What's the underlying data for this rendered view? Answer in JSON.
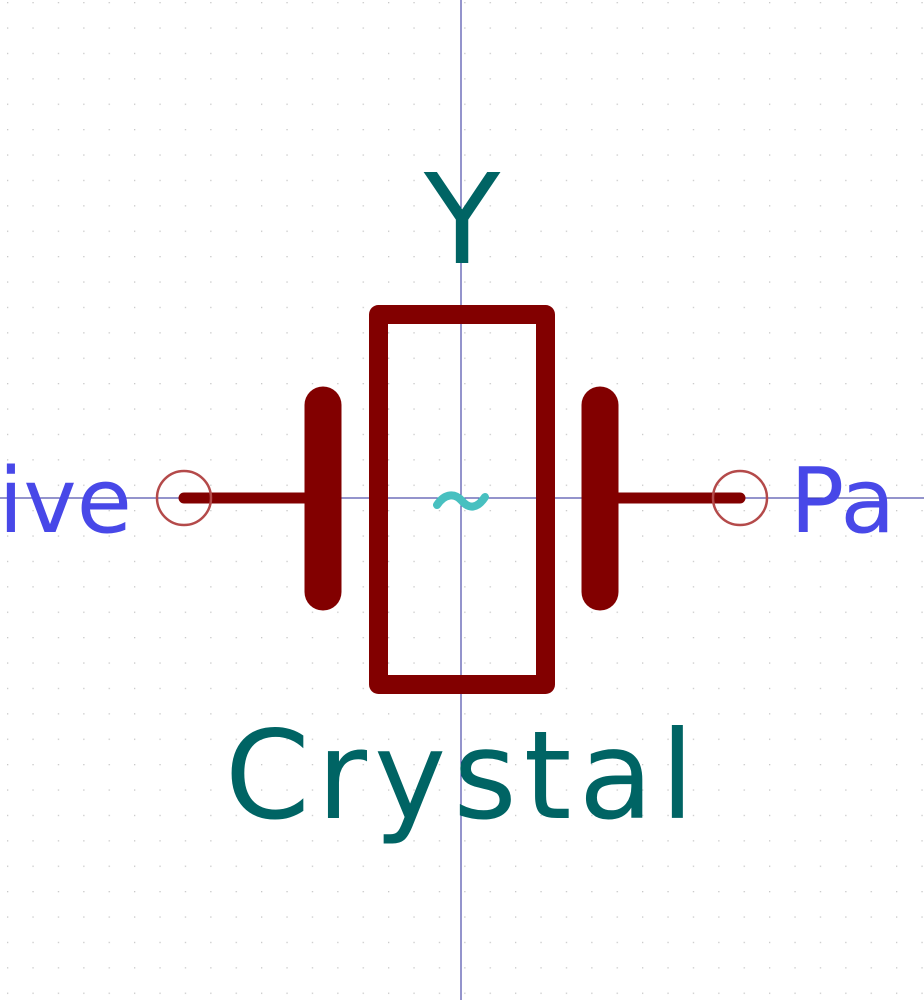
{
  "symbol": {
    "reference": "Y",
    "value": "Crystal",
    "center_glyph": "~",
    "pin_left_name_fragment": "ive",
    "pin_right_name_fragment": "Pa"
  },
  "colors": {
    "background": "#ffffff",
    "grid_dot": "#c8c8c8",
    "axis": "#2a2a9a",
    "body": "#820000",
    "pin_circle": "#b44a4a",
    "ref_value_text": "#006464",
    "pin_name_text": "#4848e8",
    "center_glyph": "#48c0c0"
  },
  "icons": {
    "pin_marker": "circle",
    "crystal_body": "rectangle",
    "electrodes": "plate"
  }
}
